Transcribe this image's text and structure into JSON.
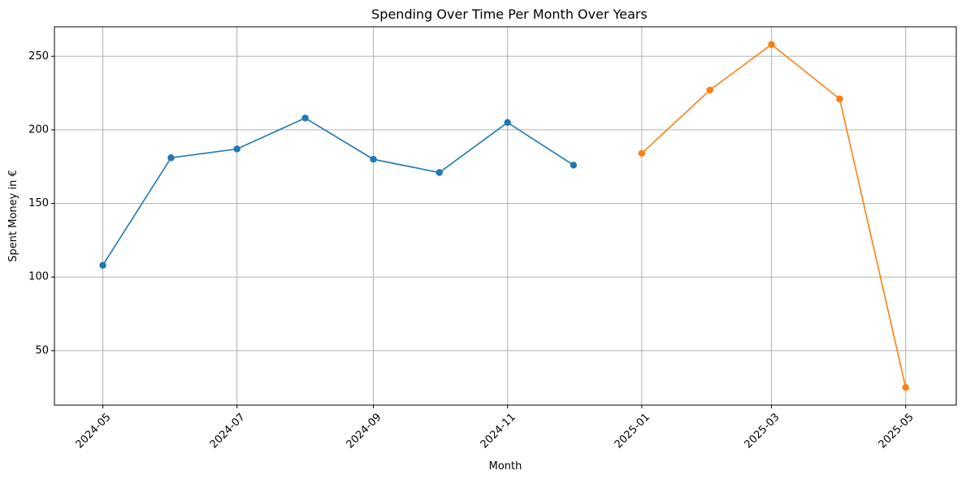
{
  "chart_data": {
    "type": "line",
    "title": "Spending Over Time Per Month Over Years",
    "xlabel": "Month",
    "ylabel": "Spent Money in €",
    "x_ticks": [
      "2024-05",
      "2024-07",
      "2024-09",
      "2024-11",
      "2025-01",
      "2025-03",
      "2025-05"
    ],
    "y_ticks": [
      50,
      100,
      150,
      200,
      250
    ],
    "xlim": [
      "2024-04-09",
      "2025-05-24"
    ],
    "ylim": [
      13,
      270
    ],
    "grid": true,
    "series": [
      {
        "color": "#1f77b4",
        "points": [
          {
            "x": "2024-05",
            "y": 108
          },
          {
            "x": "2024-06",
            "y": 181
          },
          {
            "x": "2024-07",
            "y": 187
          },
          {
            "x": "2024-08",
            "y": 208
          },
          {
            "x": "2024-09",
            "y": 180
          },
          {
            "x": "2024-10",
            "y": 171
          },
          {
            "x": "2024-11",
            "y": 205
          },
          {
            "x": "2024-12",
            "y": 176
          }
        ]
      },
      {
        "color": "#ff7f0e",
        "points": [
          {
            "x": "2025-01",
            "y": 184
          },
          {
            "x": "2025-02",
            "y": 227
          },
          {
            "x": "2025-03",
            "y": 258
          },
          {
            "x": "2025-04",
            "y": 221
          },
          {
            "x": "2025-05",
            "y": 25
          }
        ]
      }
    ]
  }
}
